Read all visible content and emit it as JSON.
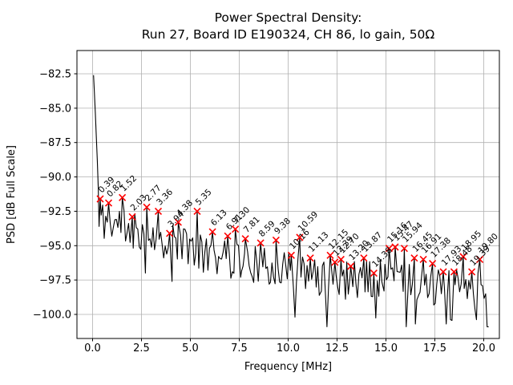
{
  "chart_data": {
    "type": "line",
    "title": "Power Spectral Density:",
    "subtitle": "Run 27, Board ID E190324, CH 86, lo gain, 50Ω",
    "xlabel": "Frequency [MHz]",
    "ylabel": "PSD [dB Full Scale]",
    "grid": true,
    "legend": "none",
    "line_color": "#000000",
    "grid_color": "#b0b0b0",
    "marker_style": {
      "symbol": "x",
      "color": "#ff0000"
    },
    "xlim": [
      -0.8,
      20.8
    ],
    "ylim": [
      -101.75,
      -80.8
    ],
    "xticks": [
      0.0,
      2.5,
      5.0,
      7.5,
      10.0,
      12.5,
      15.0,
      17.5,
      20.0
    ],
    "xtick_labels": [
      "0.0",
      "2.5",
      "5.0",
      "7.5",
      "10.0",
      "12.5",
      "15.0",
      "17.5",
      "20.0"
    ],
    "yticks": [
      -82.5,
      -85.0,
      -87.5,
      -90.0,
      -92.5,
      -95.0,
      -97.5,
      -100.0
    ],
    "ytick_labels": [
      "−82.5",
      "−85.0",
      "−87.5",
      "−90.0",
      "−92.5",
      "−95.0",
      "−97.5",
      "−100.0"
    ],
    "spike_points": [
      [
        0.05,
        -82.6
      ],
      [
        0.09,
        -83.8
      ],
      [
        0.14,
        -85.3
      ],
      [
        0.19,
        -87.0
      ],
      [
        0.24,
        -88.8
      ],
      [
        0.29,
        -90.8
      ],
      [
        0.33,
        -93.6
      ]
    ],
    "peaks": [
      {
        "label": "0.39",
        "f": 0.39,
        "psd": -91.6
      },
      {
        "label": "0.82",
        "f": 0.82,
        "psd": -91.9
      },
      {
        "label": "1.52",
        "f": 1.52,
        "psd": -91.5
      },
      {
        "label": "2.03",
        "f": 2.03,
        "psd": -92.9
      },
      {
        "label": "2.77",
        "f": 2.77,
        "psd": -92.2
      },
      {
        "label": "3.36",
        "f": 3.36,
        "psd": -92.5
      },
      {
        "label": "3.94",
        "f": 3.94,
        "psd": -94.1
      },
      {
        "label": "4.38",
        "f": 4.38,
        "psd": -93.3
      },
      {
        "label": "5.35",
        "f": 5.35,
        "psd": -92.5
      },
      {
        "label": "6.13",
        "f": 6.13,
        "psd": -94.0
      },
      {
        "label": "6.91",
        "f": 6.91,
        "psd": -94.3
      },
      {
        "label": "7.30",
        "f": 7.3,
        "psd": -93.8
      },
      {
        "label": "7.81",
        "f": 7.81,
        "psd": -94.5
      },
      {
        "label": "8.59",
        "f": 8.59,
        "psd": -94.8
      },
      {
        "label": "9.38",
        "f": 9.38,
        "psd": -94.6
      },
      {
        "label": "10.16",
        "f": 10.16,
        "psd": -95.7
      },
      {
        "label": "10.59",
        "f": 10.59,
        "psd": -94.4
      },
      {
        "label": "11.13",
        "f": 11.13,
        "psd": -95.9
      },
      {
        "label": "12.15",
        "f": 12.15,
        "psd": -95.7
      },
      {
        "label": "12.39",
        "f": 12.39,
        "psd": -96.2
      },
      {
        "label": "12.70",
        "f": 12.7,
        "psd": -96.0
      },
      {
        "label": "13.20",
        "f": 13.2,
        "psd": -96.5
      },
      {
        "label": "13.87",
        "f": 13.87,
        "psd": -95.9
      },
      {
        "label": "14.38",
        "f": 14.38,
        "psd": -97.0
      },
      {
        "label": "15.16",
        "f": 15.16,
        "psd": -95.2
      },
      {
        "label": "15.47",
        "f": 15.47,
        "psd": -95.1
      },
      {
        "label": "15.94",
        "f": 15.94,
        "psd": -95.2
      },
      {
        "label": "16.45",
        "f": 16.45,
        "psd": -95.9
      },
      {
        "label": "16.91",
        "f": 16.91,
        "psd": -96.0
      },
      {
        "label": "17.38",
        "f": 17.38,
        "psd": -96.3
      },
      {
        "label": "17.93",
        "f": 17.93,
        "psd": -96.9
      },
      {
        "label": "18.48",
        "f": 18.48,
        "psd": -96.9
      },
      {
        "label": "18.95",
        "f": 18.95,
        "psd": -95.8
      },
      {
        "label": "19.39",
        "f": 19.39,
        "psd": -96.9
      },
      {
        "label": "19.80",
        "f": 19.8,
        "psd": -96.0
      }
    ],
    "dips": [
      [
        4.06,
        -97.6
      ],
      [
        7.57,
        -97.3
      ],
      [
        9.03,
        -97.8
      ],
      [
        10.35,
        -100.2
      ],
      [
        11.7,
        -98.3
      ],
      [
        12.93,
        -98.9
      ],
      [
        14.9,
        -98.3
      ],
      [
        16.7,
        -98.5
      ],
      [
        18.08,
        -100.7
      ],
      [
        19.55,
        -99.6
      ],
      [
        20.1,
        -98.5
      ]
    ],
    "noise_floor_trend": [
      [
        0,
        -91.4
      ],
      [
        3,
        -92.5
      ],
      [
        6,
        -94.0
      ],
      [
        9,
        -94.8
      ],
      [
        12,
        -95.8
      ],
      [
        15,
        -95.6
      ],
      [
        18,
        -96.4
      ],
      [
        20.4,
        -96.0
      ]
    ],
    "noise_jitter_db": 1.55,
    "f_range": [
      0.05,
      20.25
    ]
  }
}
